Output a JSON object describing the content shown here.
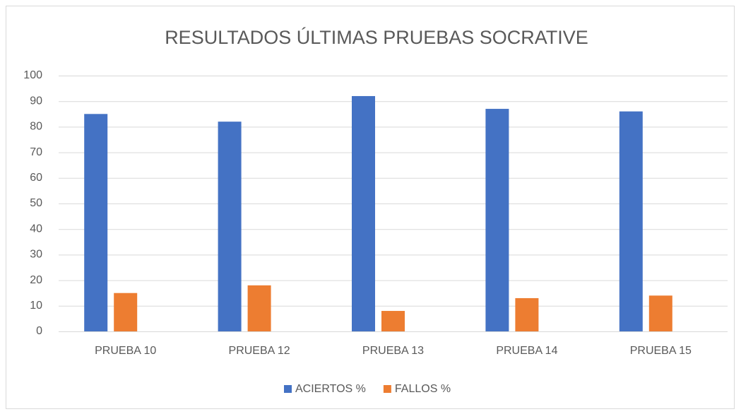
{
  "chart_data": {
    "type": "bar",
    "title": "RESULTADOS ÚLTIMAS PRUEBAS SOCRATIVE",
    "categories": [
      "PRUEBA 10",
      "PRUEBA 12",
      "PRUEBA 13",
      "PRUEBA 14",
      "PRUEBA 15"
    ],
    "series": [
      {
        "name": "ACIERTOS %",
        "color": "#4472c4",
        "values": [
          85,
          82,
          92,
          87,
          86
        ]
      },
      {
        "name": "FALLOS %",
        "color": "#ed7d31",
        "values": [
          15,
          18,
          8,
          13,
          14
        ]
      }
    ],
    "ylim": [
      0,
      100
    ],
    "yticks": [
      0,
      10,
      20,
      30,
      40,
      50,
      60,
      70,
      80,
      90,
      100
    ],
    "grid": true,
    "legend": "bottom"
  }
}
